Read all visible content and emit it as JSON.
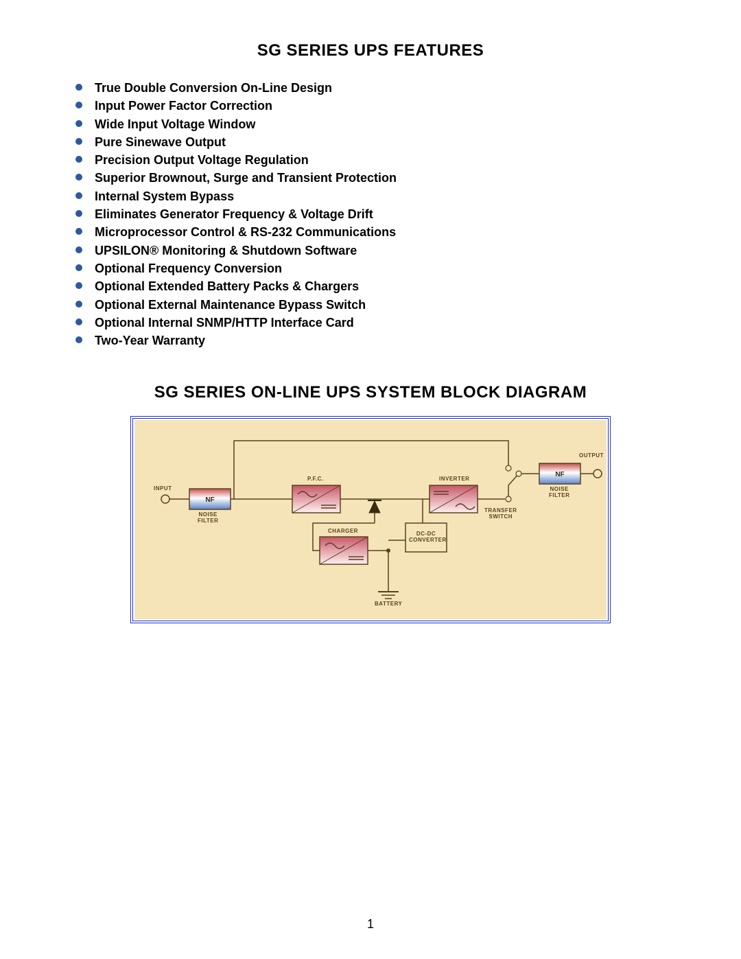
{
  "features": {
    "title": "SG SERIES UPS FEATURES",
    "bullet_color": "#2d5a9e",
    "text_color": "#000000",
    "items": [
      "True Double Conversion On-Line Design",
      "Input Power Factor Correction",
      "Wide Input Voltage Window",
      "Pure Sinewave Output",
      "Precision Output Voltage Regulation",
      "Superior Brownout, Surge and Transient Protection",
      "Internal System Bypass",
      "Eliminates Generator Frequency & Voltage Drift",
      "Microprocessor Control & RS-232 Communications",
      "UPSILON® Monitoring & Shutdown Software",
      "Optional Frequency Conversion",
      "Optional Extended Battery Packs & Chargers",
      "Optional External Maintenance Bypass Switch",
      "Optional Internal SNMP/HTTP Interface Card",
      "Two-Year Warranty"
    ]
  },
  "diagram": {
    "title": "SG SERIES ON-LINE UPS SYSTEM BLOCK DIAGRAM",
    "background_color": "#f5e4b8",
    "border_color": "#1a2fd0",
    "line_color": "#5a4020",
    "block_colors": {
      "nf_grad_top": "#c44",
      "nf_grad_mid": "#ffffff",
      "nf_grad_bot": "#4a7cc4",
      "module_grad_top": "#d66",
      "module_grad_bot": "#ffffff",
      "block_border": "#5a4020"
    },
    "labels": {
      "input": "INPUT",
      "output": "OUTPUT",
      "noise_filter": "NOISE\nFILTER",
      "pfc": "P.F.C.",
      "inverter": "INVERTER",
      "transfer_switch": "TRANSFER\nSWITCH",
      "charger": "CHARGER",
      "dc_dc": "DC-DC\nCONVERTER",
      "battery": "BATTERY",
      "nf": "NF"
    }
  },
  "page_number": "1"
}
